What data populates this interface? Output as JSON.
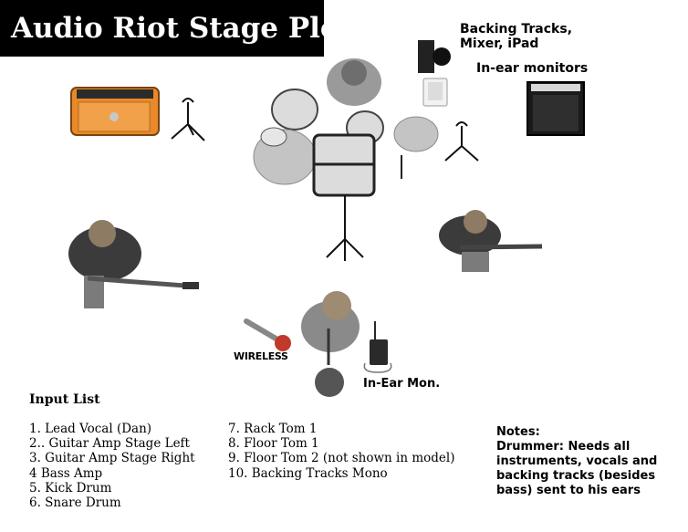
{
  "title": "Audio Riot Stage Plot",
  "labels": {
    "backing_tracks": "Backing Tracks,",
    "mixer_ipad": "Mixer, iPad",
    "in_ear_monitors": "In-ear monitors",
    "wireless": "WIRELESS",
    "in_ear_mon": "In-Ear Mon."
  },
  "input_list": {
    "heading": "Input List",
    "column1": [
      "1. Lead Vocal (Dan)",
      "2.. Guitar Amp Stage Left",
      "3. Guitar Amp Stage Right",
      "4 Bass Amp",
      "5. Kick Drum",
      "6. Snare Drum"
    ],
    "column2": [
      "7. Rack Tom 1",
      "8. Floor Tom 1",
      "9. Floor Tom 2 (not shown in model)",
      "10. Backing Tracks Mono"
    ]
  },
  "notes": {
    "heading": "Notes:",
    "body": "Drummer: Needs all instruments, vocals and backing tracks (besides bass) sent to his ears"
  },
  "colors": {
    "amp_orange": "#e8892a",
    "amp_dark": "#1a1a1a",
    "drum_gray": "#bdbdbd",
    "mic_red": "#c0392b"
  }
}
